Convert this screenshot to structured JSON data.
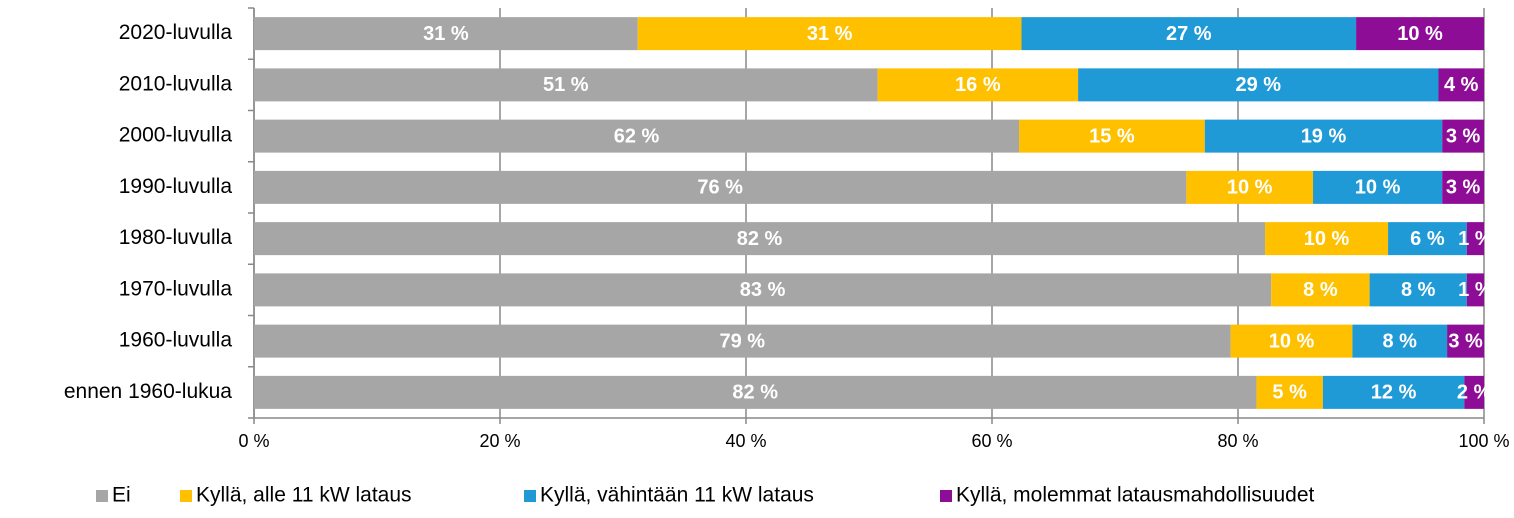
{
  "chart_data": {
    "type": "stacked_barh",
    "categories": [
      "2020-luvulla",
      "2010-luvulla",
      "2000-luvulla",
      "1990-luvulla",
      "1980-luvulla",
      "1970-luvulla",
      "1960-luvulla",
      "ennen 1960-lukua"
    ],
    "series": [
      {
        "name": "Ei",
        "color": "#a6a6a6",
        "values": [
          31.2,
          50.7,
          62.2,
          75.8,
          82.2,
          82.7,
          79.4,
          81.5
        ],
        "value_labels": [
          "31 %",
          "51 %",
          "62 %",
          "76 %",
          "82 %",
          "83 %",
          "79 %",
          "82 %"
        ]
      },
      {
        "name": "Kyllä, alle 11 kW lataus",
        "color": "#ffc000",
        "values": [
          31.2,
          16.3,
          15.1,
          10.3,
          10.0,
          8.0,
          9.9,
          5.4
        ],
        "value_labels": [
          "31 %",
          "16 %",
          "15 %",
          "10 %",
          "10 %",
          "8 %",
          "10 %",
          "5 %"
        ]
      },
      {
        "name": "Kyllä, vähintään 11 kW lataus",
        "color": "#1f9ad6",
        "values": [
          27.2,
          29.3,
          19.3,
          10.5,
          6.4,
          7.9,
          7.7,
          11.5
        ],
        "value_labels": [
          "27 %",
          "29 %",
          "19 %",
          "10 %",
          "6 %",
          "8 %",
          "8 %",
          "12 %"
        ]
      },
      {
        "name": "Kyllä, molemmat latausmahdollisuudet",
        "color": "#8e0d96",
        "values": [
          10.4,
          3.7,
          3.4,
          3.4,
          1.4,
          1.4,
          3.0,
          1.6
        ],
        "value_labels": [
          "10 %",
          "4 %",
          "3 %",
          "3 %",
          "1 %",
          "1 %",
          "3 %",
          "2 %"
        ]
      }
    ],
    "xlim": [
      0,
      100
    ],
    "xticks": [
      {
        "value": 0,
        "label": "0 %"
      },
      {
        "value": 20,
        "label": "20 %"
      },
      {
        "value": 40,
        "label": "40 %"
      },
      {
        "value": 60,
        "label": "60 %"
      },
      {
        "value": 80,
        "label": "80 %"
      },
      {
        "value": 100,
        "label": "100 %"
      }
    ],
    "grid": true,
    "legend": "bottom"
  }
}
